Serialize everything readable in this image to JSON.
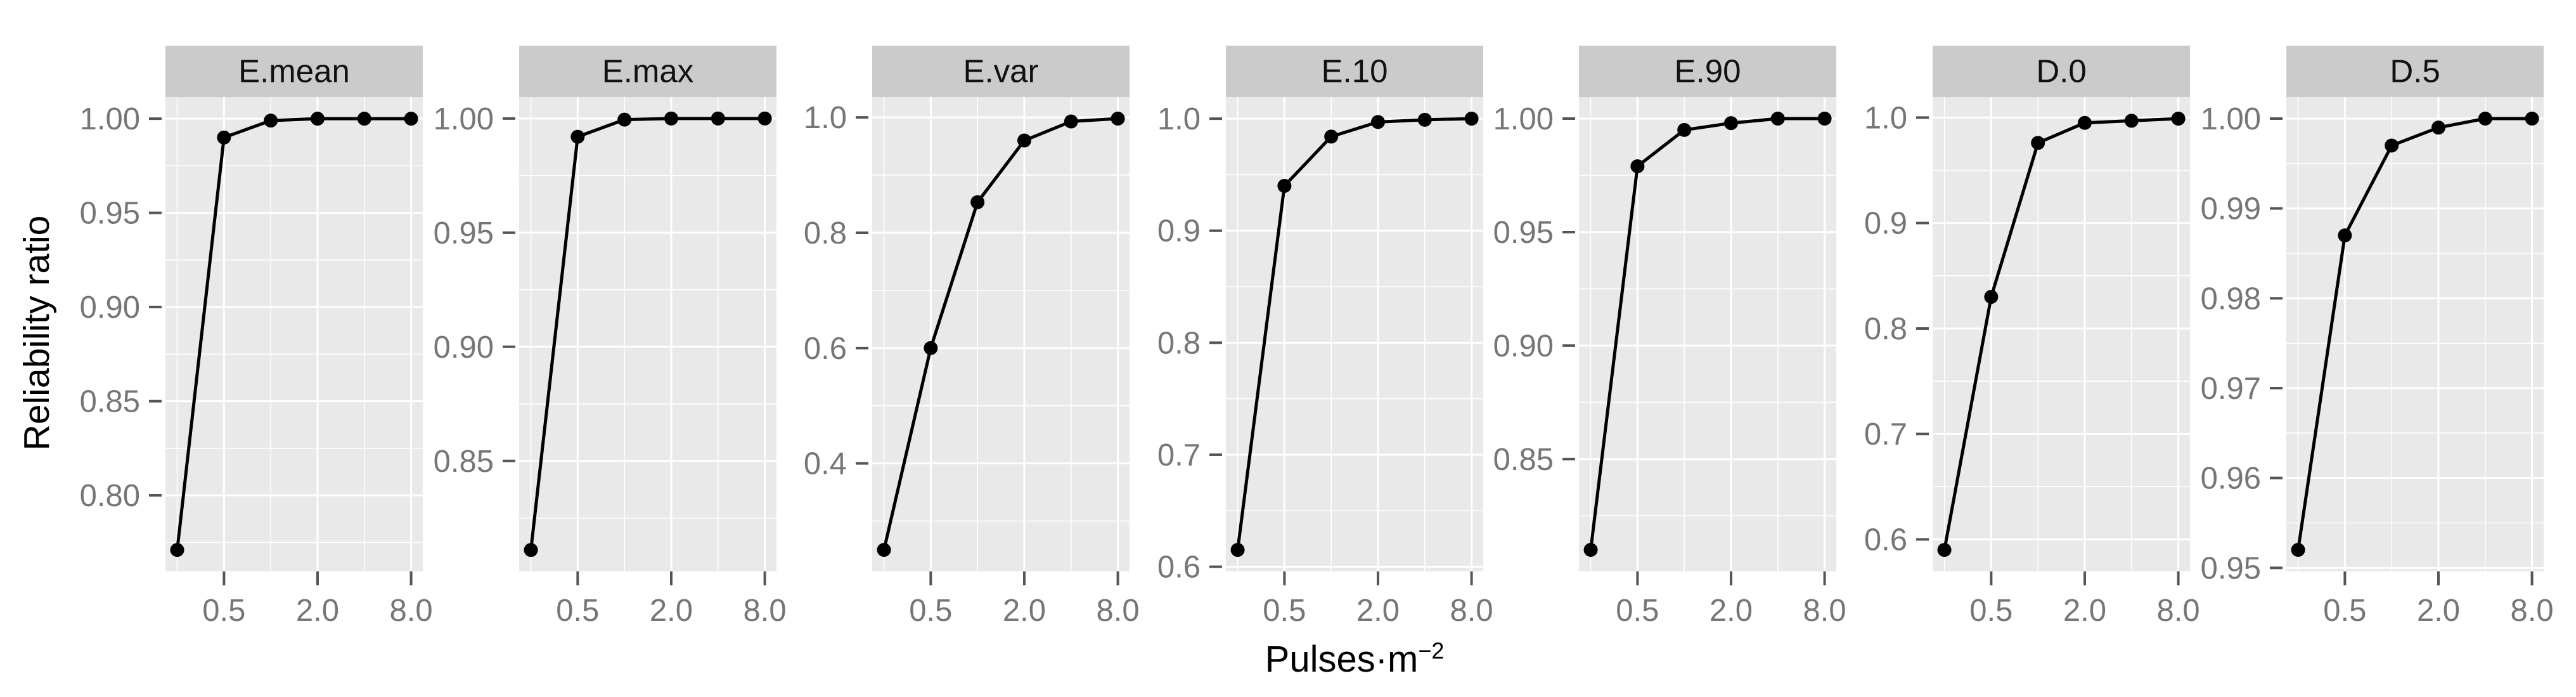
{
  "chart_data": {
    "type": "line",
    "title": "",
    "ylabel": "Reliability ratio",
    "xlabel_base": "Pulses·m",
    "xlabel_superscript": "−2",
    "x_scale": "log2",
    "xlim": [
      0.21,
      9.51
    ],
    "x": [
      0.25,
      0.5,
      1,
      2,
      4,
      8
    ],
    "x_major_ticks": {
      "values": [
        0.5,
        2,
        8
      ],
      "labels": [
        "0.5",
        "2.0",
        "8.0"
      ]
    },
    "x_minor": [
      0.25,
      1,
      4
    ],
    "grid": "on",
    "legend": "none",
    "panels": [
      {
        "title": "E.mean",
        "ylim": [
          0.7596,
          1.0115
        ],
        "ytick_values": [
          1.0,
          0.95,
          0.9,
          0.85,
          0.8
        ],
        "ytick_labels": [
          "1.00",
          "0.95",
          "0.90",
          "0.85",
          "0.80"
        ],
        "y_minor": [
          0.975,
          0.925,
          0.875,
          0.825,
          0.775
        ],
        "values": [
          0.771,
          0.99,
          0.999,
          1.0,
          1.0,
          1.0
        ]
      },
      {
        "title": "E.max",
        "ylim": [
          0.8016,
          1.0094
        ],
        "ytick_values": [
          1.0,
          0.95,
          0.9,
          0.85
        ],
        "ytick_labels": [
          "1.00",
          "0.95",
          "0.90",
          "0.85"
        ],
        "y_minor": [
          0.975,
          0.925,
          0.875,
          0.825
        ],
        "values": [
          0.811,
          0.992,
          0.9995,
          1.0,
          1.0,
          1.0
        ]
      },
      {
        "title": "E.var",
        "ylim": [
          0.2126,
          1.0354
        ],
        "ytick_values": [
          1.0,
          0.8,
          0.6,
          0.4
        ],
        "ytick_labels": [
          "1.0",
          "0.8",
          "0.6",
          "0.4"
        ],
        "y_minor": [
          0.9,
          0.7,
          0.5,
          0.3
        ],
        "values": [
          0.25,
          0.6,
          0.853,
          0.96,
          0.993,
          0.998
        ]
      },
      {
        "title": "E.10",
        "ylim": [
          0.5958,
          1.0193
        ],
        "ytick_values": [
          1.0,
          0.9,
          0.8,
          0.7,
          0.6
        ],
        "ytick_labels": [
          "1.0",
          "0.9",
          "0.8",
          "0.7",
          "0.6"
        ],
        "y_minor": [
          0.95,
          0.85,
          0.75,
          0.65
        ],
        "values": [
          0.615,
          0.94,
          0.984,
          0.997,
          0.999,
          1.0
        ]
      },
      {
        "title": "E.90",
        "ylim": [
          0.8005,
          1.0095
        ],
        "ytick_values": [
          1.0,
          0.95,
          0.9,
          0.85
        ],
        "ytick_labels": [
          "1.00",
          "0.95",
          "0.90",
          "0.85"
        ],
        "y_minor": [
          0.975,
          0.925,
          0.875,
          0.825
        ],
        "values": [
          0.81,
          0.979,
          0.995,
          0.998,
          1.0,
          1.0
        ]
      },
      {
        "title": "D.0",
        "ylim": [
          0.5696,
          1.0195
        ],
        "ytick_values": [
          1.0,
          0.9,
          0.8,
          0.7,
          0.6
        ],
        "ytick_labels": [
          "1.0",
          "0.9",
          "0.8",
          "0.7",
          "0.6"
        ],
        "y_minor": [
          0.95,
          0.85,
          0.75,
          0.65
        ],
        "values": [
          0.59,
          0.83,
          0.976,
          0.995,
          0.997,
          0.999
        ]
      },
      {
        "title": "D.5",
        "ylim": [
          0.9496,
          1.0024
        ],
        "ytick_values": [
          1.0,
          0.99,
          0.98,
          0.97,
          0.96,
          0.95
        ],
        "ytick_labels": [
          "1.00",
          "0.99",
          "0.98",
          "0.97",
          "0.96",
          "0.95"
        ],
        "y_minor": [
          0.995,
          0.985,
          0.975,
          0.965,
          0.955
        ],
        "values": [
          0.952,
          0.987,
          0.997,
          0.999,
          1.0,
          1.0
        ]
      }
    ],
    "colors": {
      "panel_background": "#E9E9E9",
      "strip_background": "#CBCBCB",
      "gridline": "#FFFFFF",
      "data_line": "#000000",
      "tick_mark": "#555555",
      "tick_label": "#767676",
      "strip_text": "#111111"
    }
  }
}
